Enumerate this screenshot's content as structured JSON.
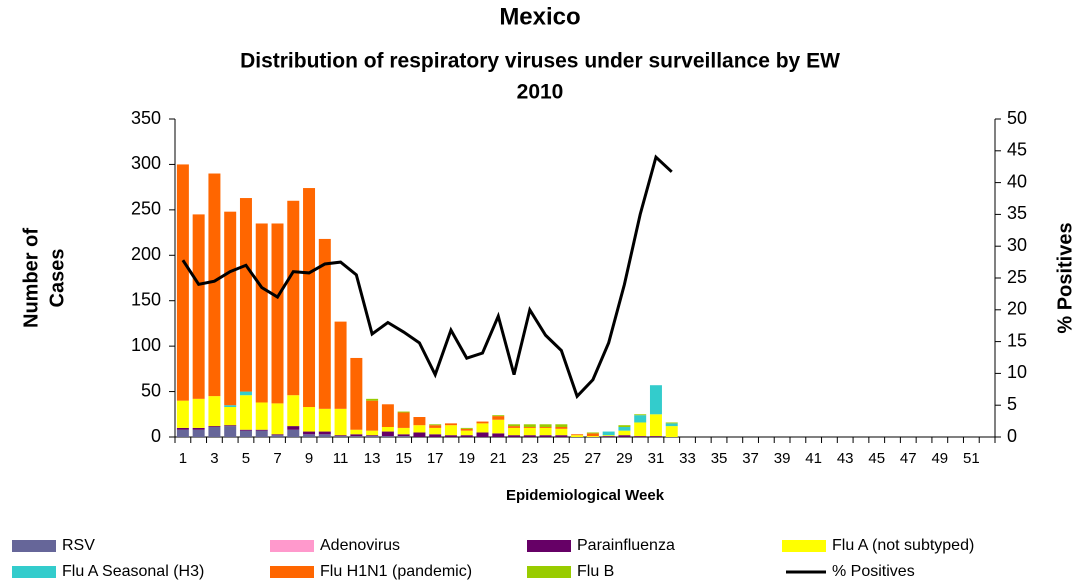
{
  "chart_data": {
    "type": "bar",
    "stacked": true,
    "title": "Mexico",
    "subtitle_lines": [
      "Distribution of respiratory viruses under surveillance by EW",
      "2010"
    ],
    "ylabel_lines": [
      "Number of",
      "Cases"
    ],
    "y2label": "% Positives",
    "xlabel": "Epidemiological Week",
    "categories": [
      "1",
      null,
      "3",
      null,
      "5",
      null,
      "7",
      null,
      "9",
      null,
      "11",
      null,
      "13",
      null,
      "15",
      null,
      "17",
      null,
      "19",
      null,
      "21",
      null,
      "23",
      null,
      "25",
      null,
      "27",
      null,
      "29",
      null,
      "31",
      null,
      "33",
      null,
      "35",
      null,
      "37",
      null,
      "39",
      null,
      "41",
      null,
      "43",
      null,
      "45",
      null,
      "47",
      null,
      "49",
      null,
      "51",
      null
    ],
    "ylim": [
      0,
      350
    ],
    "yticks": [
      0,
      50,
      100,
      150,
      200,
      250,
      300,
      350
    ],
    "y2lim": [
      0,
      50
    ],
    "y2ticks": [
      0,
      5,
      10,
      15,
      20,
      25,
      30,
      35,
      40,
      45,
      50
    ],
    "legend": "bottom",
    "series": [
      {
        "name": "RSV",
        "color": "#666699",
        "values": [
          8,
          8,
          11,
          12,
          7,
          7,
          2,
          8,
          3,
          3,
          1,
          1,
          1,
          1,
          1,
          0,
          0,
          0,
          0,
          0,
          0,
          0,
          0,
          0,
          0,
          0,
          0,
          0,
          0,
          0,
          0,
          0,
          0,
          0,
          0,
          0,
          0,
          0,
          0,
          0,
          0,
          0,
          0,
          0,
          0,
          0,
          0,
          0,
          0,
          0,
          0,
          0
        ]
      },
      {
        "name": "Adenovirus",
        "color": "#ff99cc",
        "values": [
          0,
          0,
          0,
          0,
          0,
          0,
          0,
          0,
          0,
          0,
          0,
          0,
          0,
          0,
          0,
          0,
          0,
          0,
          0,
          0,
          0,
          0,
          0,
          0,
          0,
          0,
          0,
          0,
          0,
          0,
          0,
          0,
          0,
          0,
          0,
          0,
          0,
          0,
          0,
          0,
          0,
          0,
          0,
          0,
          0,
          0,
          0,
          0,
          0,
          0,
          0,
          0
        ]
      },
      {
        "name": "Parainfluenza",
        "color": "#660066",
        "values": [
          2,
          2,
          1,
          1,
          1,
          1,
          1,
          4,
          3,
          3,
          1,
          2,
          1,
          5,
          2,
          5,
          3,
          2,
          2,
          5,
          4,
          2,
          2,
          2,
          2,
          0,
          0,
          1,
          2,
          1,
          1,
          0,
          0,
          0,
          0,
          0,
          0,
          0,
          0,
          0,
          0,
          0,
          0,
          0,
          0,
          0,
          0,
          0,
          0,
          0,
          0,
          0
        ]
      },
      {
        "name": "Flu A (not subtyped)",
        "color": "#ffff00",
        "values": [
          30,
          32,
          33,
          20,
          38,
          30,
          34,
          34,
          27,
          25,
          29,
          5,
          5,
          5,
          7,
          8,
          7,
          11,
          5,
          10,
          15,
          8,
          8,
          8,
          7,
          2,
          1,
          1,
          5,
          15,
          24,
          12,
          0,
          0,
          0,
          0,
          0,
          0,
          0,
          0,
          0,
          0,
          0,
          0,
          0,
          0,
          0,
          0,
          0,
          0,
          0,
          0
        ]
      },
      {
        "name": "Flu A Seasonal (H3)",
        "color": "#33cccc",
        "values": [
          0,
          0,
          0,
          2,
          4,
          0,
          0,
          0,
          0,
          0,
          0,
          0,
          0,
          0,
          0,
          0,
          0,
          0,
          0,
          0,
          0,
          0,
          0,
          0,
          0,
          0,
          0,
          4,
          4,
          8,
          32,
          3,
          0,
          0,
          0,
          0,
          0,
          0,
          0,
          0,
          0,
          0,
          0,
          0,
          0,
          0,
          0,
          0,
          0,
          0,
          0,
          0
        ]
      },
      {
        "name": "Flu H1N1 (pandemic)",
        "color": "#ff6600",
        "values": [
          260,
          203,
          245,
          213,
          213,
          197,
          198,
          214,
          241,
          187,
          96,
          79,
          33,
          25,
          17,
          9,
          3,
          2,
          2,
          2,
          4,
          2,
          1,
          1,
          2,
          1,
          3,
          0,
          0,
          0,
          0,
          0,
          0,
          0,
          0,
          0,
          0,
          0,
          0,
          0,
          0,
          0,
          0,
          0,
          0,
          0,
          0,
          0,
          0,
          0,
          0,
          0
        ]
      },
      {
        "name": "Flu B",
        "color": "#99cc00",
        "values": [
          0,
          0,
          0,
          0,
          0,
          0,
          0,
          0,
          0,
          0,
          0,
          0,
          2,
          0,
          1,
          0,
          1,
          0,
          1,
          0,
          1,
          2,
          3,
          3,
          3,
          0,
          1,
          0,
          2,
          1,
          0,
          1,
          0,
          0,
          0,
          0,
          0,
          0,
          0,
          0,
          0,
          0,
          0,
          0,
          0,
          0,
          0,
          0,
          0,
          0,
          0,
          0
        ]
      },
      {
        "name": "% Positives",
        "color": "#000000",
        "type": "line",
        "axis": "y2",
        "values": [
          27.8,
          24,
          24.5,
          26,
          27,
          23.5,
          22,
          26,
          25.8,
          27.2,
          27.5,
          25.5,
          16.2,
          18,
          16.5,
          14.8,
          9.8,
          16.8,
          12.4,
          13.2,
          19,
          9.8,
          20,
          16,
          13.6,
          6.4,
          9,
          14.8,
          24,
          35,
          44,
          41.7,
          null,
          null,
          null,
          null,
          null,
          null,
          null,
          null,
          null,
          null,
          null,
          null,
          null,
          null,
          null,
          null,
          null,
          null,
          null,
          null
        ]
      }
    ]
  }
}
